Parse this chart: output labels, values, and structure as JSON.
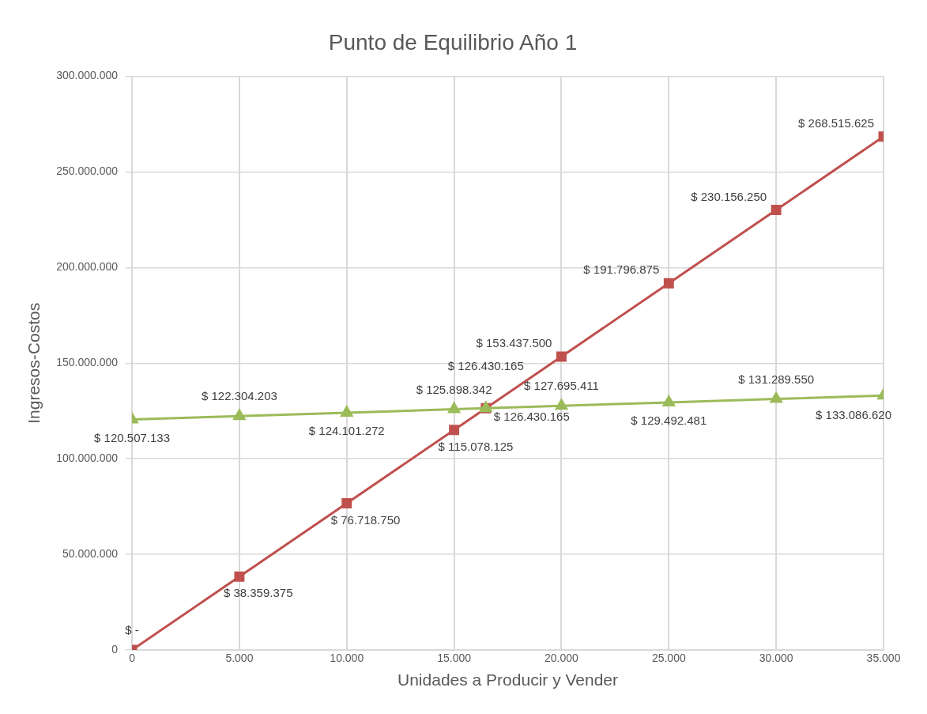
{
  "chart_data": {
    "type": "line",
    "title": "Punto de Equilibrio Año 1",
    "xlabel": "Unidades a Producir y Vender",
    "ylabel": "Ingresos-Costos",
    "x": [
      0,
      5000,
      10000,
      15000,
      16480,
      20000,
      25000,
      30000,
      35000
    ],
    "xlim": [
      0,
      35000
    ],
    "xticks": [
      0,
      {
        "value": 5000,
        "label": "5.000"
      },
      {
        "value": 10000,
        "label": "10.000"
      },
      {
        "value": 15000,
        "label": "15.000"
      },
      {
        "value": 20000,
        "label": "20.000"
      },
      {
        "value": 25000,
        "label": "25.000"
      },
      {
        "value": 30000,
        "label": "30.000"
      },
      {
        "value": 35000,
        "label": "35.000"
      }
    ],
    "ylim": [
      0,
      300000000
    ],
    "yticks": [
      0,
      {
        "value": 50000000,
        "label": "50.000.000"
      },
      {
        "value": 100000000,
        "label": "100.000.000"
      },
      {
        "value": 150000000,
        "label": "150.000.000"
      },
      {
        "value": 200000000,
        "label": "200.000.000"
      },
      {
        "value": 250000000,
        "label": "250.000.000"
      },
      {
        "value": 300000000,
        "label": "300.000.000"
      }
    ],
    "grid": true,
    "legend": false,
    "series": [
      {
        "color": "#9bbb59",
        "marker": "triangle",
        "line_style": "solid",
        "values": [
          120507133,
          122304203,
          124101272,
          125898342,
          126430165,
          127695411,
          129492481,
          131289550,
          133086620
        ],
        "value_labels": [
          "$ 120.507.133",
          "$ 122.304.203",
          "$ 124.101.272",
          "$ 125.898.342",
          "$ 126.430.165",
          "$ 127.695.411",
          "$ 129.492.481",
          "$ 131.289.550",
          "$ 133.086.620"
        ]
      },
      {
        "color": "#c0504d",
        "marker": "square",
        "line_style": "solid",
        "values": [
          0,
          38359375,
          76718750,
          115078125,
          126430165,
          153437500,
          191796875,
          230156250,
          268515625
        ],
        "value_labels": [
          "$ -",
          "$ 38.359.375",
          "$ 76.718.750",
          "$ 115.078.125",
          "$ 126.430.165",
          "$ 153.437.500",
          "$ 191.796.875",
          "$ 230.156.250",
          "$ 268.515.625"
        ]
      }
    ]
  }
}
